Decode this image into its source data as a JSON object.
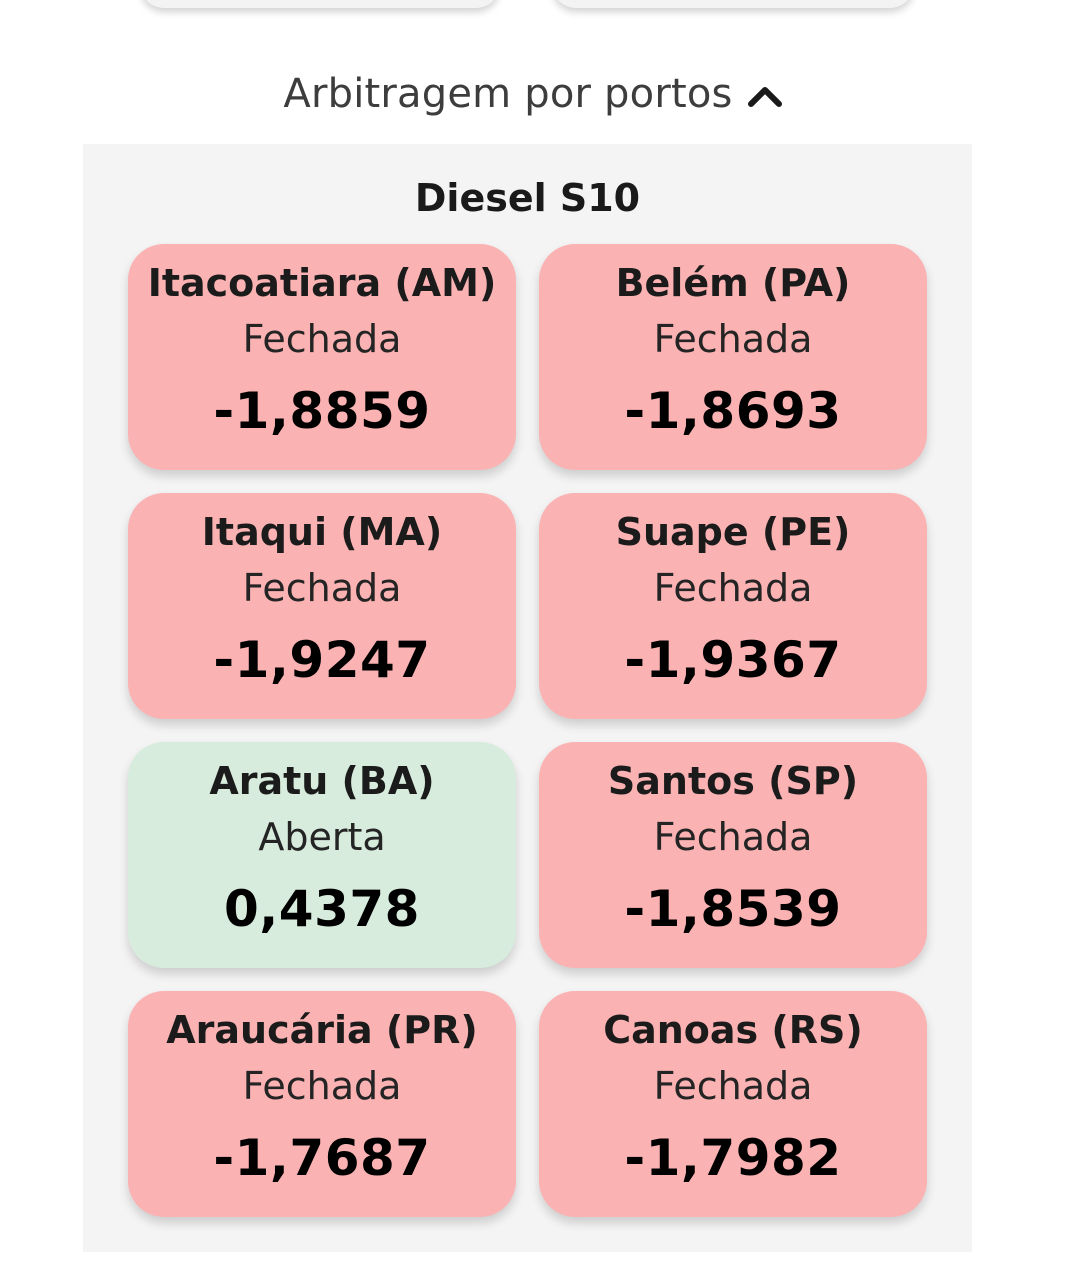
{
  "section": {
    "title": "Arbitragem por portos",
    "toggle_icon": "chevron-up-icon"
  },
  "panel": {
    "title": "Diesel S10"
  },
  "colors": {
    "closed": "#fbb2b3",
    "open": "#d7ecdd"
  },
  "ports": [
    {
      "name": "Itacoatiara (AM)",
      "status": "Fechada",
      "value": "-1,8859",
      "state": "closed"
    },
    {
      "name": "Belém (PA)",
      "status": "Fechada",
      "value": "-1,8693",
      "state": "closed"
    },
    {
      "name": "Itaqui (MA)",
      "status": "Fechada",
      "value": "-1,9247",
      "state": "closed"
    },
    {
      "name": "Suape (PE)",
      "status": "Fechada",
      "value": "-1,9367",
      "state": "closed"
    },
    {
      "name": "Aratu (BA)",
      "status": "Aberta",
      "value": "0,4378",
      "state": "open"
    },
    {
      "name": "Santos (SP)",
      "status": "Fechada",
      "value": "-1,8539",
      "state": "closed"
    },
    {
      "name": "Araucária (PR)",
      "status": "Fechada",
      "value": "-1,7687",
      "state": "closed"
    },
    {
      "name": "Canoas (RS)",
      "status": "Fechada",
      "value": "-1,7982",
      "state": "closed"
    }
  ]
}
